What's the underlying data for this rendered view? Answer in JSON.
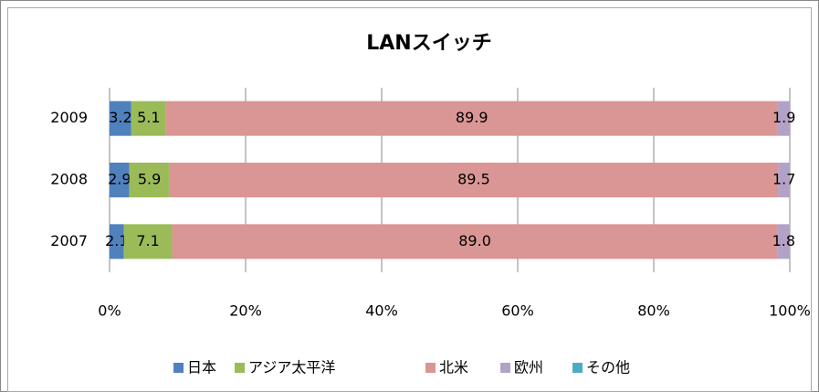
{
  "chart_data": {
    "type": "bar",
    "orientation": "horizontal",
    "stacked": true,
    "title": "LANスイッチ",
    "categories": [
      "2009",
      "2008",
      "2007"
    ],
    "series": [
      {
        "name": "日本",
        "color": "#4f81bd",
        "values": [
          3.2,
          2.9,
          2.1
        ]
      },
      {
        "name": "アジア太平洋",
        "color": "#9bbb59",
        "values": [
          5.1,
          5.9,
          7.1
        ]
      },
      {
        "name": "北米",
        "color": "#d99694",
        "values": [
          89.9,
          89.5,
          89.0
        ],
        "value_labels": [
          "89.9",
          "89.5",
          "89.0"
        ]
      },
      {
        "name": "欧州",
        "color": "#b3a2c7",
        "values": [
          1.9,
          1.7,
          1.8
        ]
      },
      {
        "name": "その他",
        "color": "#4bacc6",
        "values": [
          0,
          0,
          0
        ]
      }
    ],
    "xlim": [
      0,
      100
    ],
    "xticks": [
      {
        "value": 0,
        "label": "0%"
      },
      {
        "value": 20,
        "label": "20%"
      },
      {
        "value": 40,
        "label": "40%"
      },
      {
        "value": 60,
        "label": "60%"
      },
      {
        "value": 80,
        "label": "80%"
      },
      {
        "value": 100,
        "label": "100%"
      }
    ],
    "grid": true,
    "legend": "bottom"
  }
}
